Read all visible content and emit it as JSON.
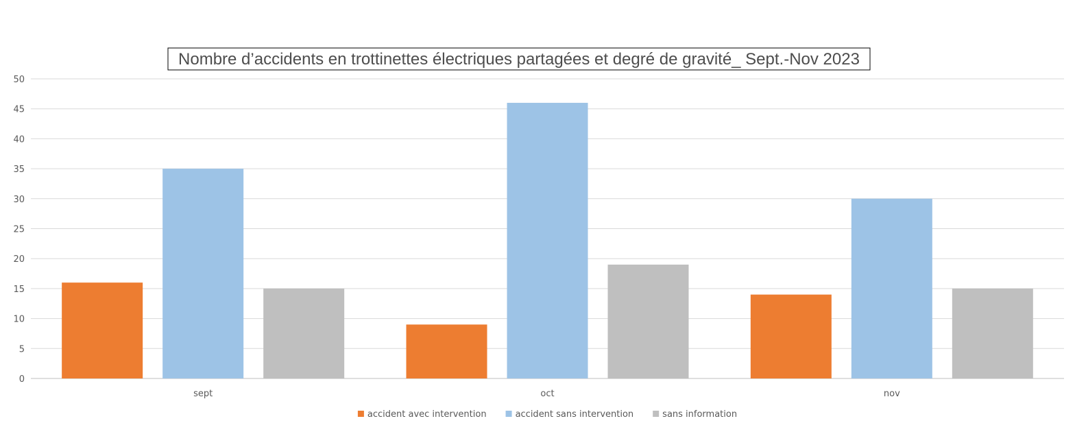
{
  "chart_data": {
    "type": "bar",
    "title": "Nombre d’accidents en trottinettes électriques partagées et degré de gravité_ Sept.-Nov 2023",
    "categories": [
      "sept",
      "oct",
      "nov"
    ],
    "series": [
      {
        "name": "accident avec intervention",
        "color": "#ED7D31",
        "values": [
          16,
          9,
          14
        ]
      },
      {
        "name": "accident sans intervention",
        "color": "#9DC3E6",
        "values": [
          35,
          46,
          30
        ]
      },
      {
        "name": "sans information",
        "color": "#BFBFBF",
        "values": [
          15,
          19,
          15
        ]
      }
    ],
    "ylim": [
      0,
      50
    ],
    "ytick_step": 5,
    "yticks": [
      "0",
      "5",
      "10",
      "15",
      "20",
      "25",
      "30",
      "35",
      "40",
      "45",
      "50"
    ],
    "grid": true,
    "legend_position": "bottom"
  }
}
